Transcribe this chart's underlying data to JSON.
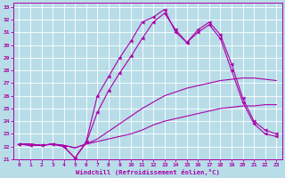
{
  "xlabel": "Windchill (Refroidissement éolien,°C)",
  "bg_color": "#b8dde8",
  "line_color": "#aa00aa",
  "grid_color": "#ffffff",
  "xlim": [
    -0.5,
    23.5
  ],
  "ylim": [
    21,
    33.3
  ],
  "xticks": [
    0,
    1,
    2,
    3,
    4,
    5,
    6,
    7,
    8,
    9,
    10,
    11,
    12,
    13,
    14,
    15,
    16,
    17,
    18,
    19,
    20,
    21,
    22,
    23
  ],
  "yticks": [
    21,
    22,
    23,
    24,
    25,
    26,
    27,
    28,
    29,
    30,
    31,
    32,
    33
  ],
  "line1_x": [
    0,
    1,
    2,
    3,
    4,
    5,
    6,
    7,
    8,
    9,
    10,
    11,
    12,
    13,
    14,
    15,
    16,
    17,
    18,
    19,
    20,
    21,
    22,
    23
  ],
  "line1_y": [
    22.2,
    22.2,
    22.1,
    22.2,
    22.1,
    21.9,
    22.2,
    22.4,
    22.6,
    22.8,
    23.0,
    23.3,
    23.7,
    24.0,
    24.2,
    24.4,
    24.6,
    24.8,
    25.0,
    25.1,
    25.2,
    25.2,
    25.3,
    25.3
  ],
  "line2_x": [
    0,
    1,
    2,
    3,
    4,
    5,
    6,
    7,
    8,
    9,
    10,
    11,
    12,
    13,
    14,
    15,
    16,
    17,
    18,
    19,
    20,
    21,
    22,
    23
  ],
  "line2_y": [
    22.2,
    22.2,
    22.1,
    22.2,
    22.1,
    21.9,
    22.2,
    22.6,
    23.2,
    23.8,
    24.4,
    25.0,
    25.5,
    26.0,
    26.3,
    26.6,
    26.8,
    27.0,
    27.2,
    27.3,
    27.4,
    27.4,
    27.3,
    27.2
  ],
  "line3_x": [
    0,
    1,
    2,
    3,
    4,
    5,
    6,
    7,
    8,
    9,
    10,
    11,
    12,
    13,
    14,
    15,
    16,
    17,
    18,
    19,
    20,
    21,
    22,
    23
  ],
  "line3_y": [
    22.2,
    22.1,
    22.1,
    22.2,
    22.0,
    21.1,
    22.3,
    24.7,
    26.4,
    27.8,
    29.1,
    30.5,
    31.8,
    32.5,
    31.2,
    30.2,
    31.0,
    31.6,
    30.5,
    28.0,
    25.5,
    23.8,
    23.0,
    22.8
  ],
  "line4_x": [
    0,
    1,
    2,
    3,
    4,
    5,
    6,
    7,
    8,
    9,
    10,
    11,
    12,
    13,
    14,
    15,
    16,
    17,
    18,
    19,
    20,
    21,
    22,
    23
  ],
  "line4_y": [
    22.2,
    22.1,
    22.1,
    22.2,
    22.0,
    21.1,
    22.4,
    26.0,
    27.5,
    29.0,
    30.3,
    31.8,
    32.2,
    32.8,
    31.0,
    30.2,
    31.2,
    31.8,
    30.8,
    28.5,
    25.8,
    24.0,
    23.3,
    23.0
  ]
}
